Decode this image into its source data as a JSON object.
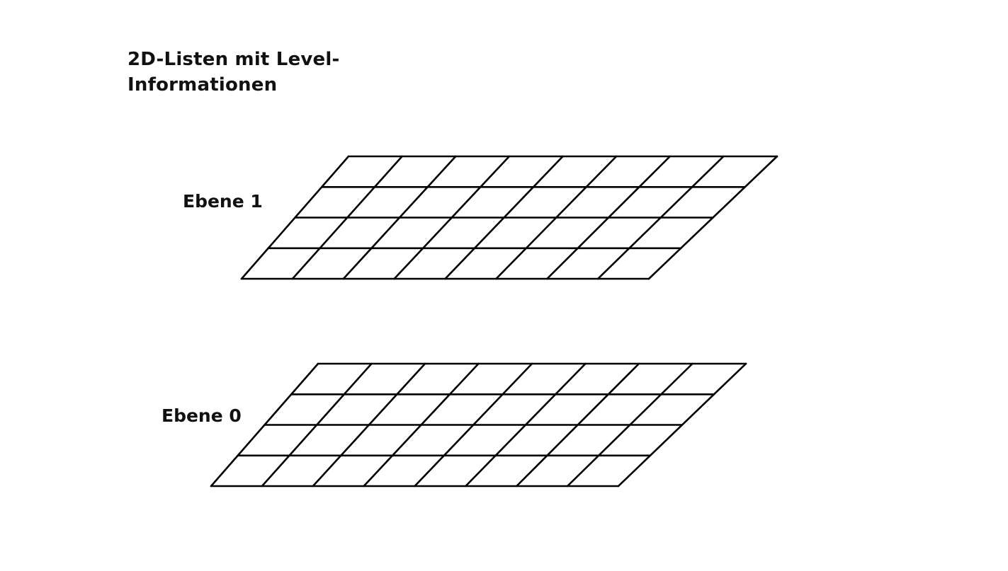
{
  "title": {
    "line1": "2D-Listen mit Level-",
    "line2": "Informationen"
  },
  "layers": [
    {
      "label": "Ebene 1",
      "rows": 4,
      "columns": 8
    },
    {
      "label": "Ebene 0",
      "rows": 4,
      "columns": 8
    }
  ],
  "colors": {
    "background": "#ffffff",
    "stroke": "#000000"
  }
}
